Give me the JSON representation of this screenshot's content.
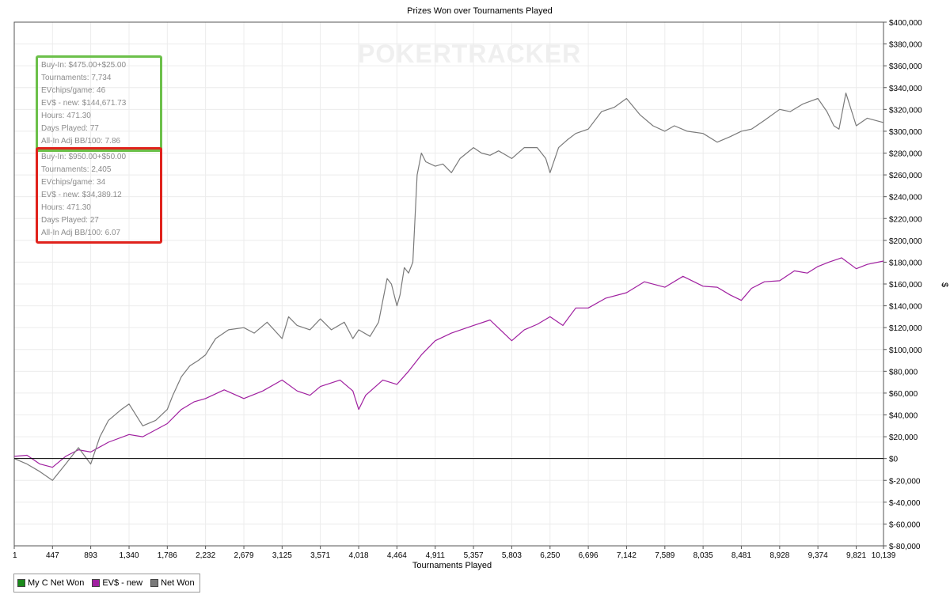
{
  "chart_data": {
    "type": "line",
    "title": "Prizes Won over Tournaments Played",
    "xlabel": "Tournaments Played",
    "ylabel": "$",
    "xlim": [
      1,
      10139
    ],
    "ylim": [
      -80000,
      400000
    ],
    "x_ticks": [
      "1",
      "447",
      "893",
      "1,340",
      "1,786",
      "2,232",
      "2,679",
      "3,125",
      "3,571",
      "4,018",
      "4,464",
      "4,911",
      "5,357",
      "5,803",
      "6,250",
      "6,696",
      "7,142",
      "7,589",
      "8,035",
      "8,481",
      "8,928",
      "9,374",
      "9,821",
      "10,139"
    ],
    "y_ticks": [
      "$400,000",
      "$380,000",
      "$360,000",
      "$340,000",
      "$320,000",
      "$300,000",
      "$280,000",
      "$260,000",
      "$240,000",
      "$220,000",
      "$200,000",
      "$180,000",
      "$160,000",
      "$140,000",
      "$120,000",
      "$100,000",
      "$80,000",
      "$60,000",
      "$40,000",
      "$20,000",
      "$0",
      "$-20,000",
      "$-40,000",
      "$-60,000",
      "$-80,000"
    ],
    "grid": true,
    "legend_position": "bottom-left",
    "series": [
      {
        "name": "My C Net Won",
        "color": "#1a8a1a",
        "x": [],
        "values": []
      },
      {
        "name": "EV$ - new",
        "color": "#a020a0",
        "x": [
          1,
          150,
          300,
          447,
          600,
          750,
          893,
          1100,
          1340,
          1500,
          1786,
          1950,
          2100,
          2232,
          2450,
          2679,
          2900,
          3125,
          3300,
          3450,
          3571,
          3800,
          3950,
          4018,
          4100,
          4300,
          4464,
          4600,
          4750,
          4911,
          5100,
          5357,
          5550,
          5803,
          5950,
          6100,
          6250,
          6400,
          6550,
          6696,
          6900,
          7142,
          7350,
          7589,
          7800,
          8035,
          8200,
          8350,
          8481,
          8600,
          8750,
          8928,
          9100,
          9250,
          9374,
          9500,
          9650,
          9821,
          9950,
          10139
        ],
        "values": [
          2000,
          3000,
          -5000,
          -8000,
          2000,
          8000,
          6000,
          15000,
          22000,
          20000,
          32000,
          45000,
          52000,
          55000,
          63000,
          55000,
          62000,
          72000,
          62000,
          58000,
          66000,
          72000,
          62000,
          45000,
          58000,
          72000,
          68000,
          80000,
          95000,
          108000,
          115000,
          122000,
          127000,
          108000,
          118000,
          123000,
          130000,
          122000,
          138000,
          138000,
          147000,
          152000,
          162000,
          157000,
          167000,
          158000,
          157000,
          150000,
          145000,
          156000,
          162000,
          163000,
          172000,
          170000,
          176000,
          180000,
          184000,
          174000,
          178000,
          181000
        ]
      },
      {
        "name": "Net Won",
        "color": "#7a7a7a",
        "x": [
          1,
          150,
          300,
          447,
          600,
          750,
          893,
          1000,
          1100,
          1250,
          1340,
          1500,
          1650,
          1786,
          1850,
          1950,
          2050,
          2150,
          2232,
          2350,
          2500,
          2679,
          2800,
          2950,
          3125,
          3200,
          3300,
          3450,
          3571,
          3700,
          3850,
          3950,
          4018,
          4150,
          4250,
          4350,
          4400,
          4464,
          4500,
          4550,
          4600,
          4650,
          4700,
          4750,
          4800,
          4911,
          5000,
          5100,
          5200,
          5357,
          5450,
          5550,
          5650,
          5803,
          5950,
          6100,
          6200,
          6250,
          6350,
          6450,
          6550,
          6696,
          6850,
          7000,
          7142,
          7300,
          7450,
          7589,
          7700,
          7850,
          8035,
          8200,
          8350,
          8481,
          8600,
          8750,
          8928,
          9050,
          9200,
          9374,
          9480,
          9560,
          9620,
          9700,
          9821,
          9950,
          10139
        ],
        "values": [
          0,
          -5000,
          -12000,
          -20000,
          -5000,
          10000,
          -5000,
          20000,
          35000,
          45000,
          50000,
          30000,
          35000,
          45000,
          58000,
          75000,
          85000,
          90000,
          95000,
          110000,
          118000,
          120000,
          115000,
          125000,
          110000,
          130000,
          122000,
          118000,
          128000,
          118000,
          125000,
          110000,
          118000,
          112000,
          125000,
          165000,
          160000,
          140000,
          150000,
          175000,
          170000,
          180000,
          260000,
          280000,
          272000,
          268000,
          270000,
          262000,
          275000,
          285000,
          280000,
          278000,
          282000,
          275000,
          285000,
          285000,
          275000,
          262000,
          285000,
          292000,
          298000,
          302000,
          318000,
          322000,
          330000,
          315000,
          305000,
          300000,
          305000,
          300000,
          298000,
          290000,
          295000,
          300000,
          302000,
          310000,
          320000,
          318000,
          325000,
          330000,
          318000,
          305000,
          302000,
          335000,
          305000,
          312000,
          308000
        ]
      }
    ]
  },
  "legend": [
    {
      "label": "My C Net Won",
      "color": "#1a8a1a"
    },
    {
      "label": "EV$ - new",
      "color": "#a020a0"
    },
    {
      "label": "Net Won",
      "color": "#7a7a7a"
    }
  ],
  "watermark": "POKERTRACKER",
  "stats_green": {
    "buyin": "Buy-In: $475.00+$25.00",
    "tournaments": "Tournaments: 7,734",
    "evchips": "EVchips/game: 46",
    "ev_new": "EV$ - new: $144,671.73",
    "hours": "Hours: 471.30",
    "days": "Days Played: 77",
    "allin": "All-In Adj BB/100: 7.86"
  },
  "stats_red": {
    "buyin": "Buy-In: $950.00+$50.00",
    "tournaments": "Tournaments: 2,405",
    "evchips": "EVchips/game: 34",
    "ev_new": "EV$ - new: $34,389.12",
    "hours": "Hours: 471.30",
    "days": "Days Played: 27",
    "allin": "All-In Adj BB/100: 6.07"
  }
}
